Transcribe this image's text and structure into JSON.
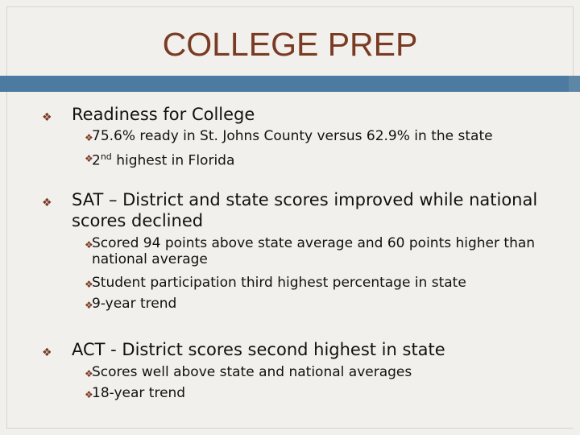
{
  "slide": {
    "title": "COLLEGE PREP",
    "accent": "#7a3b24",
    "bar_color": "#4c7aa0"
  },
  "bullets": [
    {
      "text": "Readiness for College",
      "sub": [
        {
          "text": "75.6% ready in St. Johns County versus 62.9% in the state"
        },
        {
          "pre": "2",
          "sup": "nd",
          "post": " highest in Florida"
        }
      ]
    },
    {
      "text": "SAT – District and state scores improved while national scores declined",
      "sub": [
        {
          "text": "Scored 94 points above state average and 60 points higher than national average"
        },
        {
          "text": "Student participation third highest percentage in state"
        },
        {
          "text": "9-year trend"
        }
      ]
    },
    {
      "text": "ACT  - District scores second highest in state",
      "sub": [
        {
          "text": "Scores well above state and national averages"
        },
        {
          "text": "18-year trend"
        }
      ]
    }
  ],
  "bullet_icon": "diamond-bullet-icon"
}
